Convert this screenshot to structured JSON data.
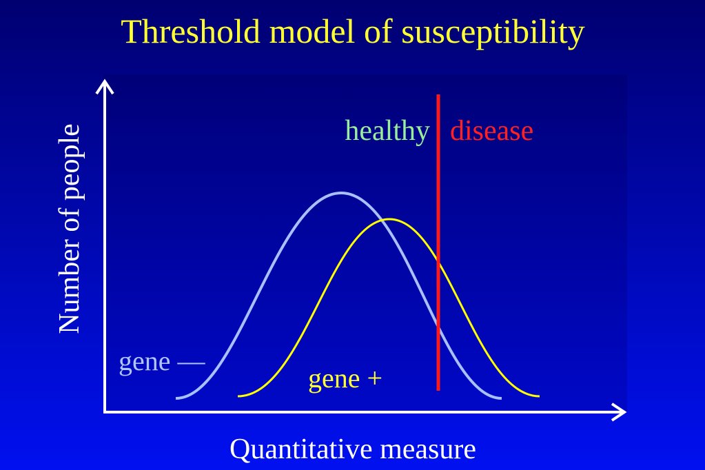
{
  "title": "Threshold model of susceptibility",
  "axes": {
    "y_label": "Number of people",
    "x_label": "Quantitative measure"
  },
  "regions": {
    "healthy": "healthy",
    "disease": "disease"
  },
  "curves": {
    "gene_minus": "gene —",
    "gene_plus": "gene +"
  }
}
